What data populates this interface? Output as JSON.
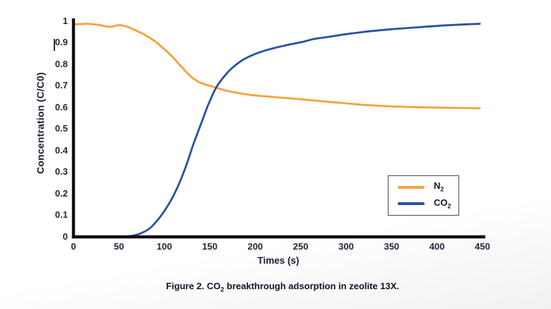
{
  "figure": {
    "caption": {
      "pre": "Figure 2. CO",
      "sub": "2",
      "post": " breakthrough adsorption in zeolite 13X."
    }
  },
  "chart_data": {
    "type": "line",
    "title": "",
    "xlabel": "Times (s)",
    "ylabel": "Concentration (C/C0)",
    "xlim": [
      0,
      450
    ],
    "ylim": [
      0,
      1
    ],
    "grid": false,
    "legend_position": "right-middle",
    "axis_color": "#101014",
    "text_color": "#26263a",
    "xticks": [
      {
        "v": 0,
        "label": "0"
      },
      {
        "v": 50,
        "label": "50"
      },
      {
        "v": 100,
        "label": "100"
      },
      {
        "v": 150,
        "label": "150"
      },
      {
        "v": 200,
        "label": "200"
      },
      {
        "v": 250,
        "label": "250"
      },
      {
        "v": 300,
        "label": "300"
      },
      {
        "v": 350,
        "label": "350"
      },
      {
        "v": 400,
        "label": "400"
      },
      {
        "v": 450,
        "label": "450"
      }
    ],
    "yticks": [
      {
        "v": 1,
        "label": "1"
      },
      {
        "v": 0.9,
        "label": "0.9"
      },
      {
        "v": 0.8,
        "label": "0.8"
      },
      {
        "v": 0.7,
        "label": "0.7"
      },
      {
        "v": 0.6,
        "label": "0.6"
      },
      {
        "v": 0.5,
        "label": "0.5"
      },
      {
        "v": 0.4,
        "label": "0.4"
      },
      {
        "v": 0.3,
        "label": "0.3"
      },
      {
        "v": 0.2,
        "label": "0.2"
      },
      {
        "v": 0.1,
        "label": "0.1"
      },
      {
        "v": 0,
        "label": "0"
      }
    ],
    "series": [
      {
        "name": "N2",
        "label": {
          "text": "N",
          "sub": "2"
        },
        "color": "#F2A33C",
        "points": [
          [
            0,
            0.985
          ],
          [
            15,
            0.988
          ],
          [
            28,
            0.983
          ],
          [
            40,
            0.974
          ],
          [
            50,
            0.982
          ],
          [
            58,
            0.976
          ],
          [
            68,
            0.958
          ],
          [
            78,
            0.938
          ],
          [
            88,
            0.912
          ],
          [
            98,
            0.878
          ],
          [
            108,
            0.838
          ],
          [
            118,
            0.793
          ],
          [
            128,
            0.748
          ],
          [
            138,
            0.718
          ],
          [
            148,
            0.703
          ],
          [
            157,
            0.692
          ],
          [
            168,
            0.678
          ],
          [
            180,
            0.668
          ],
          [
            195,
            0.658
          ],
          [
            210,
            0.652
          ],
          [
            228,
            0.646
          ],
          [
            248,
            0.639
          ],
          [
            270,
            0.63
          ],
          [
            295,
            0.621
          ],
          [
            320,
            0.612
          ],
          [
            350,
            0.605
          ],
          [
            380,
            0.601
          ],
          [
            410,
            0.599
          ],
          [
            447,
            0.596
          ]
        ]
      },
      {
        "name": "CO2",
        "label": {
          "text": "CO",
          "sub": "2"
        },
        "color": "#2B529F",
        "points": [
          [
            0,
            0
          ],
          [
            25,
            0
          ],
          [
            45,
            0
          ],
          [
            58,
            0.002
          ],
          [
            68,
            0.008
          ],
          [
            76,
            0.02
          ],
          [
            84,
            0.04
          ],
          [
            92,
            0.075
          ],
          [
            100,
            0.12
          ],
          [
            108,
            0.175
          ],
          [
            116,
            0.245
          ],
          [
            124,
            0.33
          ],
          [
            132,
            0.43
          ],
          [
            140,
            0.52
          ],
          [
            148,
            0.61
          ],
          [
            157,
            0.692
          ],
          [
            166,
            0.745
          ],
          [
            175,
            0.785
          ],
          [
            186,
            0.82
          ],
          [
            198,
            0.845
          ],
          [
            210,
            0.863
          ],
          [
            225,
            0.88
          ],
          [
            238,
            0.892
          ],
          [
            252,
            0.904
          ],
          [
            265,
            0.918
          ],
          [
            280,
            0.927
          ],
          [
            300,
            0.94
          ],
          [
            325,
            0.953
          ],
          [
            350,
            0.963
          ],
          [
            380,
            0.972
          ],
          [
            410,
            0.981
          ],
          [
            447,
            0.988
          ]
        ]
      }
    ]
  }
}
